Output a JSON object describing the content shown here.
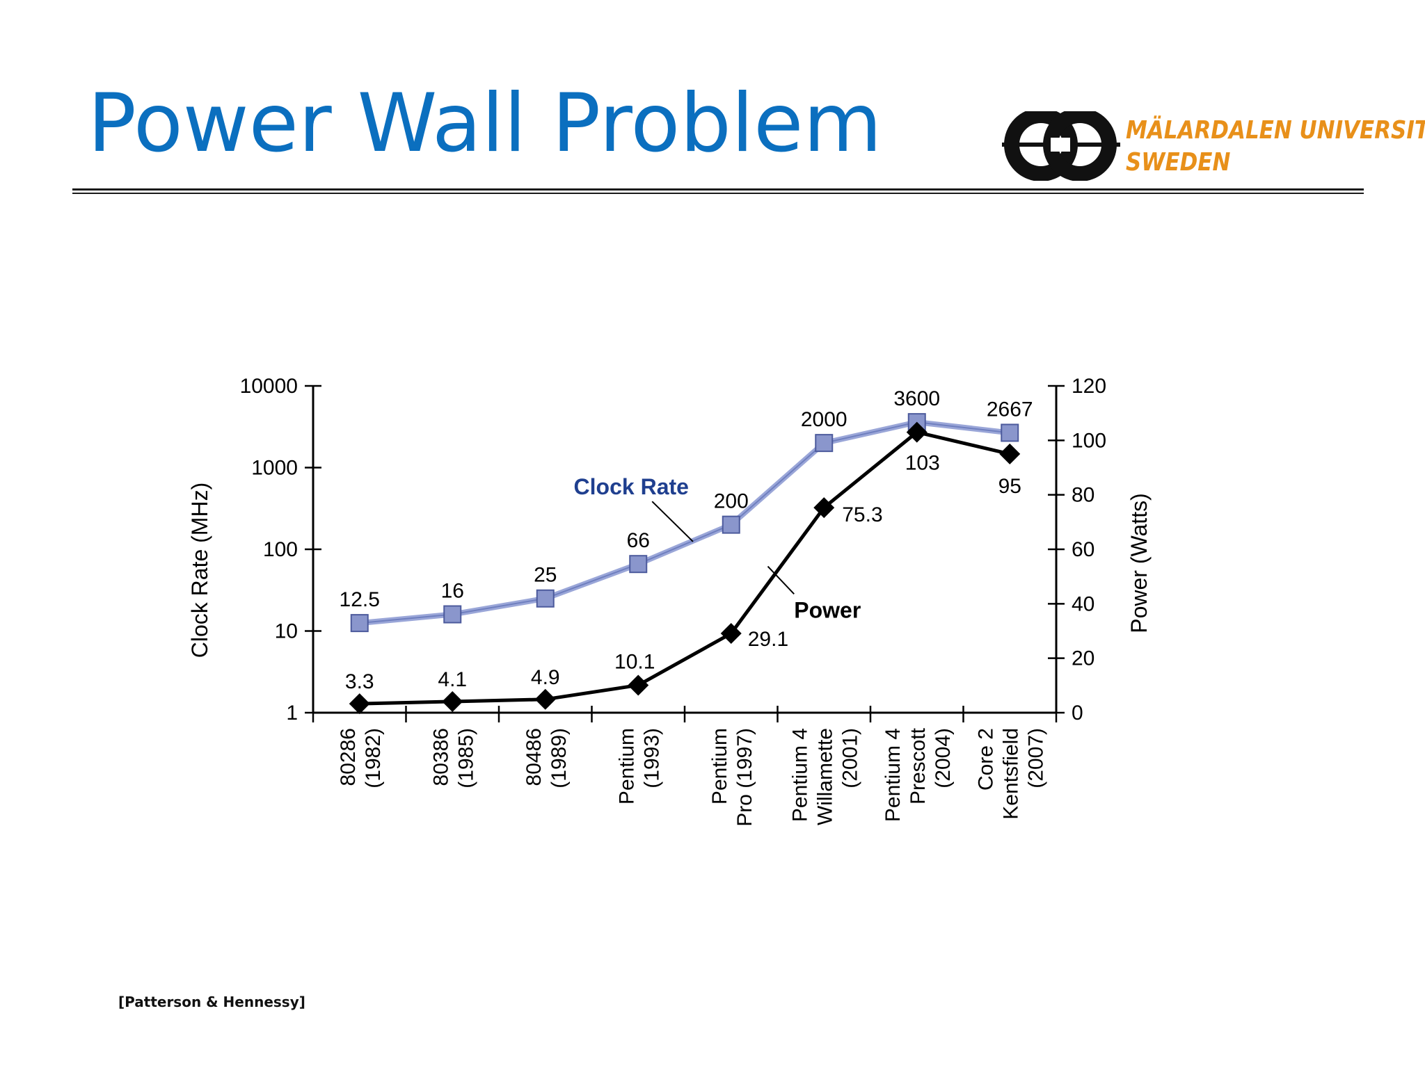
{
  "slide": {
    "title": "Power Wall Problem",
    "citation": "[Patterson & Hennessy]"
  },
  "logo": {
    "line1": "MÄLARDALEN UNIVERSITY",
    "line2": "SWEDEN",
    "accent_color": "#e8901a",
    "icon": "mdh-logo-icon"
  },
  "chart_data": {
    "type": "line",
    "categories": [
      [
        "80286",
        "(1982)"
      ],
      [
        "80386",
        "(1985)"
      ],
      [
        "80486",
        "(1989)"
      ],
      [
        "Pentium",
        "(1993)"
      ],
      [
        "Pentium",
        "Pro (1997)"
      ],
      [
        "Pentium 4",
        "Willamette",
        "(2001)"
      ],
      [
        "Pentium 4",
        "Prescott",
        "(2004)"
      ],
      [
        "Core 2",
        "Kentsfield",
        "(2007)"
      ]
    ],
    "y_left": {
      "label": "Clock Rate (MHz)",
      "scale": "log",
      "range": [
        1,
        10000
      ],
      "ticks": [
        "1",
        "10",
        "100",
        "1000",
        "10000"
      ]
    },
    "y_right": {
      "label": "Power (Watts)",
      "scale": "linear",
      "range": [
        0,
        120
      ],
      "ticks": [
        "0",
        "20",
        "40",
        "60",
        "80",
        "100",
        "120"
      ]
    },
    "series": [
      {
        "name": "Clock Rate",
        "axis": "left",
        "marker": "square",
        "color": "#6f7fbf",
        "label_color": "#1f3f8f",
        "values": [
          12.5,
          16,
          25,
          66,
          200,
          2000,
          3600,
          2667
        ],
        "labels": [
          "12.5",
          "16",
          "25",
          "66",
          "200",
          "2000",
          "3600",
          "2667"
        ]
      },
      {
        "name": "Power",
        "axis": "right",
        "marker": "diamond",
        "color": "#000000",
        "label_color": "#000000",
        "values": [
          3.3,
          4.1,
          4.9,
          10.1,
          29.1,
          75.3,
          103,
          95
        ],
        "labels": [
          "3.3",
          "4.1",
          "4.9",
          "10.1",
          "29.1",
          "75.3",
          "103",
          "95"
        ]
      }
    ],
    "grid": false,
    "legend": "inline"
  }
}
